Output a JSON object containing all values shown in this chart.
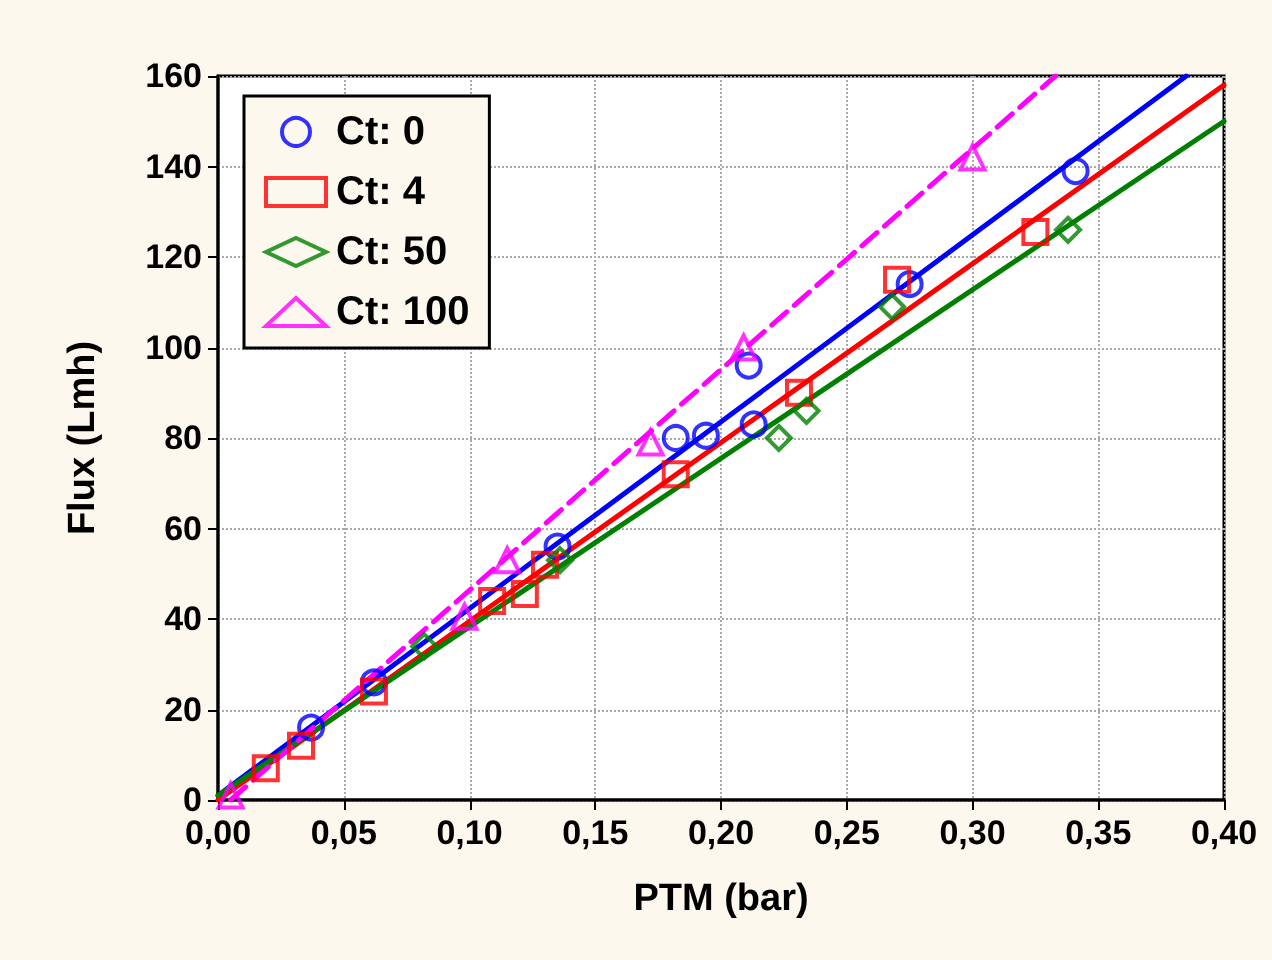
{
  "chart_data": {
    "type": "scatter",
    "xlabel": "PTM (bar)",
    "ylabel": "Flux (Lmh)",
    "xlim": [
      0,
      0.4
    ],
    "xticks": [
      {
        "value": 0,
        "label": "0,00"
      },
      {
        "value": 0.05,
        "label": "0,05"
      },
      {
        "value": 0.1,
        "label": "0,10"
      },
      {
        "value": 0.15,
        "label": "0,15"
      },
      {
        "value": 0.2,
        "label": "0,20"
      },
      {
        "value": 0.25,
        "label": "0,25"
      },
      {
        "value": 0.3,
        "label": "0,30"
      },
      {
        "value": 0.35,
        "label": "0,35"
      },
      {
        "value": 0.4,
        "label": "0,40"
      }
    ],
    "ylim": [
      0,
      160
    ],
    "yticks": [
      0,
      20,
      40,
      60,
      80,
      100,
      120,
      140,
      160
    ],
    "grid": true,
    "legend": "top left",
    "series": [
      {
        "name": "Ct: 0",
        "color": "#0000ff",
        "marker": "circle",
        "x": [
          0.037,
          0.062,
          0.135,
          0.182,
          0.194,
          0.213,
          0.211,
          0.275,
          0.341
        ],
        "values": [
          16,
          26,
          56,
          80,
          80.5,
          83,
          96,
          114,
          139
        ]
      },
      {
        "name": "Ct: 4",
        "color": "#ff0000",
        "marker": "square",
        "x": [
          0.019,
          0.033,
          0.062,
          0.109,
          0.122,
          0.13,
          0.182,
          0.231,
          0.27,
          0.325
        ],
        "values": [
          7,
          12,
          24,
          44,
          45.5,
          52,
          72,
          90,
          115,
          125.5
        ]
      },
      {
        "name": "Ct: 50",
        "color": "#008000",
        "marker": "diamond",
        "x": [
          0.082,
          0.136,
          0.223,
          0.234,
          0.268,
          0.338
        ],
        "values": [
          34,
          53,
          80,
          86,
          109,
          126
        ]
      },
      {
        "name": "Ct: 100",
        "color": "#ff00ff",
        "marker": "triangle",
        "x": [
          0.005,
          0.098,
          0.115,
          0.172,
          0.209,
          0.3
        ],
        "values": [
          1,
          40.5,
          53,
          79,
          100,
          142
        ]
      },
      {
        "type": "line",
        "color": "#0000ff",
        "line_style": "solid",
        "x": [
          0,
          0.385
        ],
        "values": [
          1,
          160
        ]
      },
      {
        "type": "line",
        "color": "#ff0000",
        "line_style": "solid",
        "x": [
          0,
          0.4
        ],
        "values": [
          0,
          158
        ]
      },
      {
        "type": "line",
        "color": "#008000",
        "line_style": "solid",
        "x": [
          0,
          0.4
        ],
        "values": [
          1,
          150
        ]
      },
      {
        "type": "line",
        "color": "#ff00ff",
        "line_style": "dashed",
        "x": [
          0.005,
          0.333
        ],
        "values": [
          0,
          160
        ]
      }
    ]
  }
}
